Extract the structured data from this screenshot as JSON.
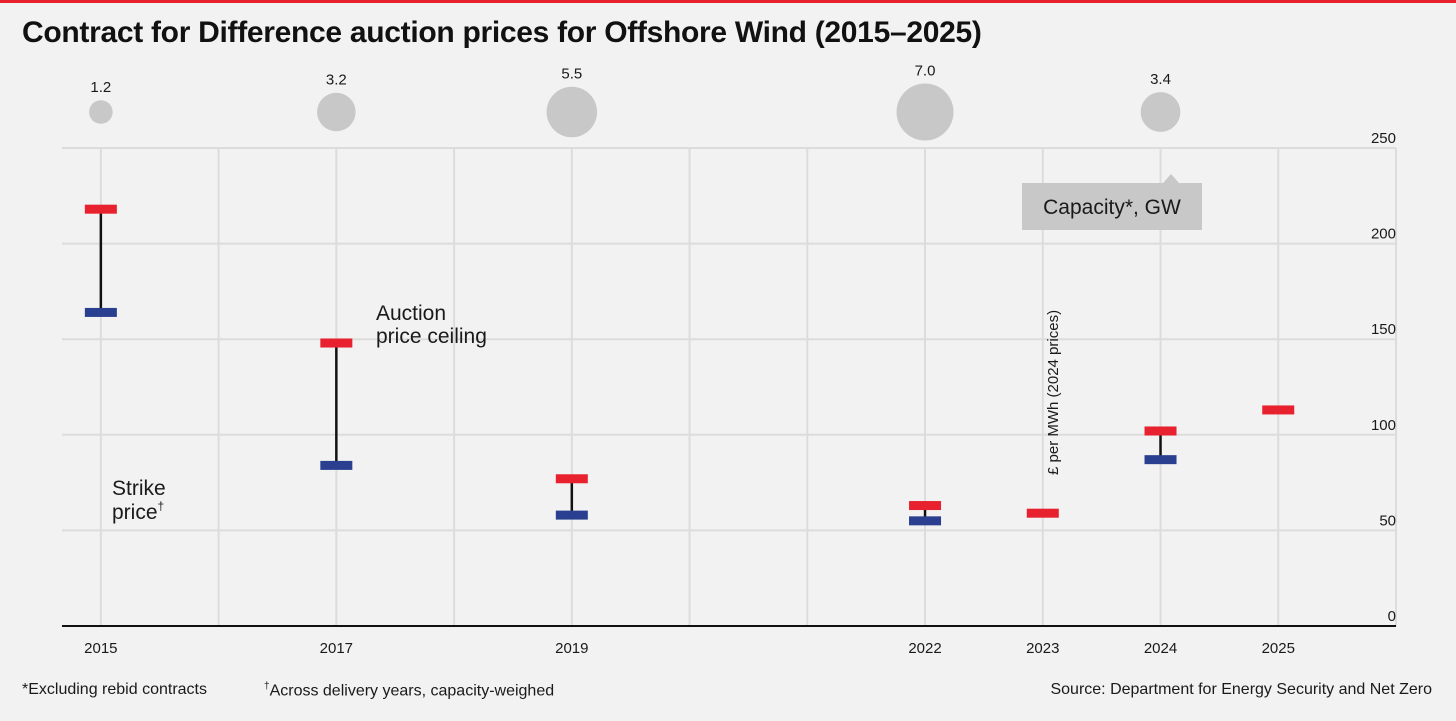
{
  "title": "Contract for Difference auction prices for Offshore Wind (2015–2025)",
  "colors": {
    "ceiling": "#e8212e",
    "strike": "#2a3f8f",
    "bubble": "#c8c8c8",
    "grid": "#dcdcdc",
    "accent_bar": "#e8212e"
  },
  "chart_data": {
    "type": "range",
    "title": "Contract for Difference auction prices for Offshore Wind (2015–2025)",
    "ylabel": "£ per MWh (2024 prices)",
    "ylim": [
      0,
      250
    ],
    "yticks": [
      0,
      50,
      100,
      150,
      200,
      250
    ],
    "x_min": 2014.67,
    "x_max": 2026.0,
    "categories": [
      "2015",
      "2017",
      "2019",
      "2022",
      "2023",
      "2024",
      "2025"
    ],
    "x": [
      2015,
      2017,
      2019,
      2022,
      2023,
      2024,
      2025
    ],
    "series": [
      {
        "name": "Auction price ceiling",
        "values": [
          218,
          148,
          77,
          63,
          59,
          102,
          113
        ]
      },
      {
        "name": "Strike price",
        "values": [
          164,
          84,
          58,
          55,
          null,
          87,
          null
        ]
      }
    ],
    "bubbles": {
      "name": "Capacity*, GW",
      "x": [
        2015,
        2017,
        2019,
        2022,
        2024
      ],
      "values": [
        1.2,
        3.2,
        5.5,
        7.0,
        3.4
      ],
      "labels": [
        "1.2",
        "3.2",
        "5.5",
        "7.0",
        "3.4"
      ]
    },
    "annotations": {
      "ceiling_label_line1": "Auction",
      "ceiling_label_line2": "price ceiling",
      "strike_label_line1": "Strike",
      "strike_label_line2": "price",
      "strike_label_mark": "†",
      "capacity_label": "Capacity*, GW"
    }
  },
  "footnotes": {
    "excluding": "*Excluding rebid contracts",
    "across_mark": "†",
    "across": "Across delivery years, capacity-weighed",
    "source": "Source: Department for Energy Security and Net Zero"
  }
}
